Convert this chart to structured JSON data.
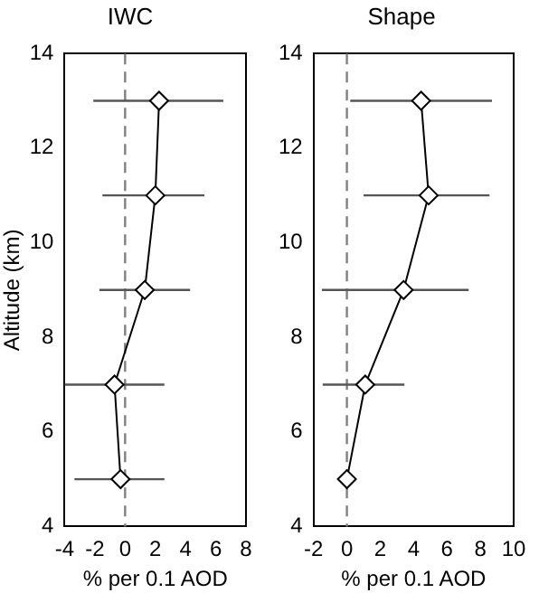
{
  "chart_data": [
    {
      "type": "line",
      "title": "IWC",
      "xlabel": "% per 0.1 AOD",
      "ylabel": "Altitude (km)",
      "xlim": [
        -4,
        8
      ],
      "xticks": [
        -4,
        -2,
        0,
        2,
        4,
        6,
        8
      ],
      "ylim": [
        4,
        14
      ],
      "yticks": [
        4,
        6,
        8,
        10,
        12,
        14
      ],
      "marker": "diamond",
      "line_style": "solid",
      "grid": false,
      "legend": false,
      "series": [
        {
          "color": "#000000",
          "x": [
            -0.3,
            -0.7,
            1.3,
            2.0,
            2.25
          ],
          "values": [
            5,
            7,
            9,
            11,
            13
          ],
          "xerrors": [
            [
              -3.35,
              2.6
            ],
            [
              -4,
              2.6
            ],
            [
              -1.7,
              4.3
            ],
            [
              -1.5,
              5.25
            ],
            [
              -2.1,
              6.5
            ]
          ]
        }
      ],
      "ref_lines": [
        {
          "axis": "x",
          "value": 0,
          "line_style": "dashed",
          "color": "#808080"
        }
      ]
    },
    {
      "type": "line",
      "title": "Shape",
      "xlabel": "% per 0.1 AOD",
      "xlim": [
        -2,
        10
      ],
      "xticks": [
        -2,
        0,
        2,
        4,
        6,
        8,
        10
      ],
      "ylim": [
        4,
        14
      ],
      "yticks": [
        4,
        6,
        8,
        10,
        12,
        14
      ],
      "marker": "diamond",
      "line_style": "solid",
      "grid": false,
      "legend": false,
      "series": [
        {
          "color": "#000000",
          "x": [
            0.0,
            1.1,
            3.4,
            4.9,
            4.45
          ],
          "values": [
            5,
            7,
            9,
            11,
            13
          ],
          "xerrors": [
            null,
            [
              -1.45,
              3.45
            ],
            [
              -1.5,
              7.3
            ],
            [
              1.0,
              8.55
            ],
            [
              0.2,
              8.7
            ]
          ]
        }
      ],
      "ref_lines": [
        {
          "axis": "x",
          "value": 0,
          "line_style": "dashed",
          "color": "#808080"
        }
      ]
    }
  ]
}
